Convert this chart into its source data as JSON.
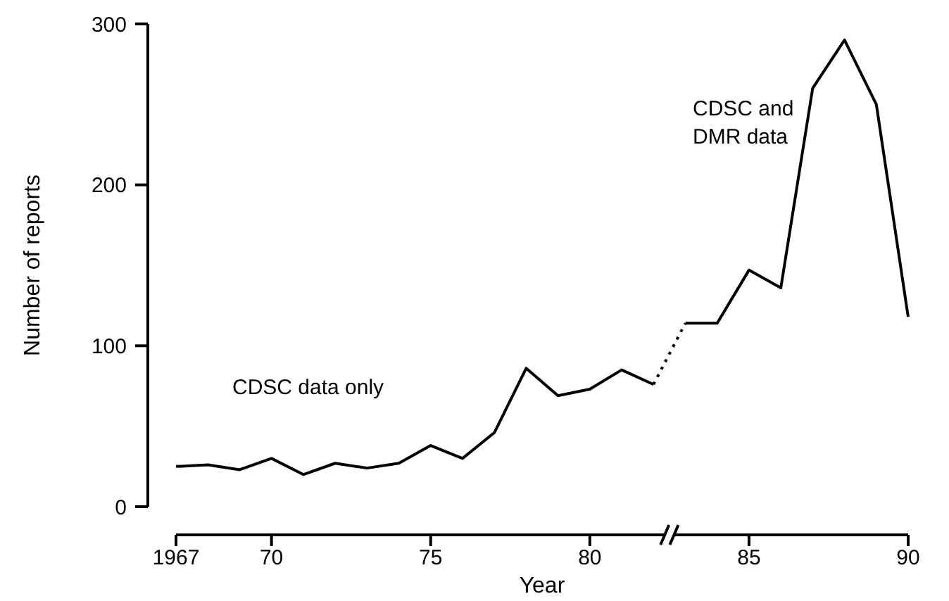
{
  "chart_data": {
    "type": "line",
    "xlabel": "Year",
    "ylabel": "Number of reports",
    "xlim": [
      1967,
      1990
    ],
    "xticks": [
      {
        "value": 1967,
        "label": "1967"
      },
      {
        "value": 1970,
        "label": "70"
      },
      {
        "value": 1975,
        "label": "75"
      },
      {
        "value": 1980,
        "label": "80"
      },
      {
        "value": 1985,
        "label": "85"
      },
      {
        "value": 1990,
        "label": "90"
      }
    ],
    "ylim": [
      0,
      300
    ],
    "yticks": [
      0,
      100,
      200,
      300
    ],
    "marker": "none",
    "series": [
      {
        "color": "#000000",
        "line_style": "solid",
        "x": [
          1967,
          1968,
          1969,
          1970,
          1971,
          1972,
          1973,
          1974,
          1975,
          1976,
          1977,
          1978,
          1979,
          1980,
          1981,
          1982
        ],
        "values": [
          25,
          26,
          23,
          30,
          20,
          27,
          24,
          27,
          38,
          30,
          46,
          86,
          69,
          73,
          85,
          76
        ]
      },
      {
        "color": "#000000",
        "line_style": "dotted",
        "x": [
          1982,
          1983
        ],
        "values": [
          76,
          114
        ]
      },
      {
        "color": "#000000",
        "line_style": "solid",
        "x": [
          1983,
          1984,
          1985,
          1986,
          1987,
          1988,
          1989,
          1990
        ],
        "values": [
          114,
          114,
          147,
          136,
          260,
          290,
          250,
          118
        ]
      }
    ],
    "annotations": [
      "CDSC data only",
      "CDSC and DMR data"
    ]
  }
}
